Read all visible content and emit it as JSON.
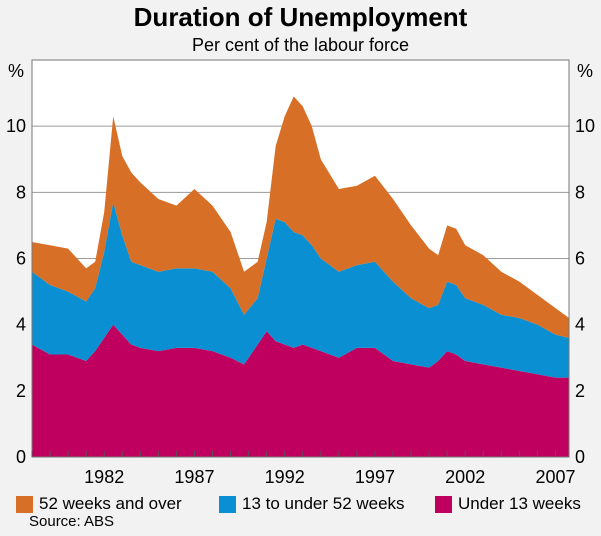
{
  "title": "Duration of Unemployment",
  "subtitle": "Per cent of the labour force",
  "source": "Source: ABS",
  "colors": {
    "long": "#d86f27",
    "medium": "#0a8fd2",
    "short": "#c0005f",
    "background": "#f2f2f2",
    "plot_background": "#ffffff"
  },
  "chart_data": {
    "type": "area",
    "stacked": true,
    "title": "Duration of Unemployment",
    "subtitle": "Per cent of the labour force",
    "ylabel_left": "%",
    "ylabel_right": "%",
    "ylim": [
      0,
      12
    ],
    "yticks": [
      0,
      2,
      4,
      6,
      8,
      10
    ],
    "xlim": [
      1978.0,
      2007.75
    ],
    "xticks": [
      1982,
      1987,
      1992,
      1997,
      2002,
      2007
    ],
    "grid": true,
    "legend_position": "bottom",
    "x": [
      1978.0,
      1979.0,
      1980.0,
      1981.0,
      1981.5,
      1982.0,
      1982.5,
      1983.0,
      1983.5,
      1984.0,
      1985.0,
      1986.0,
      1987.0,
      1988.0,
      1989.0,
      1989.75,
      1990.5,
      1991.0,
      1991.5,
      1992.0,
      1992.5,
      1993.0,
      1993.5,
      1994.0,
      1995.0,
      1996.0,
      1997.0,
      1998.0,
      1999.0,
      2000.0,
      2000.5,
      2001.0,
      2001.5,
      2002.0,
      2003.0,
      2004.0,
      2005.0,
      2006.0,
      2007.0,
      2007.75
    ],
    "series": [
      {
        "name": "Under 13 weeks",
        "color_key": "short",
        "values": [
          3.4,
          3.1,
          3.1,
          2.9,
          3.2,
          3.6,
          4.0,
          3.7,
          3.4,
          3.3,
          3.2,
          3.3,
          3.3,
          3.2,
          3.0,
          2.8,
          3.4,
          3.8,
          3.5,
          3.4,
          3.3,
          3.4,
          3.3,
          3.2,
          3.0,
          3.3,
          3.3,
          2.9,
          2.8,
          2.7,
          2.9,
          3.2,
          3.1,
          2.9,
          2.8,
          2.7,
          2.6,
          2.5,
          2.4,
          2.4
        ]
      },
      {
        "name": "13 to under 52 weeks",
        "color_key": "medium",
        "values": [
          2.2,
          2.1,
          1.9,
          1.8,
          1.9,
          2.6,
          3.7,
          3.0,
          2.5,
          2.5,
          2.4,
          2.4,
          2.4,
          2.4,
          2.1,
          1.5,
          1.4,
          2.2,
          3.7,
          3.7,
          3.5,
          3.3,
          3.1,
          2.8,
          2.6,
          2.5,
          2.6,
          2.4,
          2.0,
          1.8,
          1.7,
          2.1,
          2.1,
          1.9,
          1.8,
          1.6,
          1.6,
          1.5,
          1.3,
          1.2
        ]
      },
      {
        "name": "52 weeks and over",
        "color_key": "long",
        "values": [
          0.9,
          1.2,
          1.3,
          1.0,
          0.8,
          1.2,
          2.6,
          2.4,
          2.7,
          2.5,
          2.2,
          1.9,
          2.4,
          2.0,
          1.7,
          1.3,
          1.1,
          1.1,
          2.2,
          3.2,
          4.1,
          3.9,
          3.6,
          3.0,
          2.5,
          2.4,
          2.6,
          2.5,
          2.2,
          1.8,
          1.5,
          1.7,
          1.7,
          1.6,
          1.5,
          1.3,
          1.1,
          0.9,
          0.8,
          0.6
        ]
      }
    ]
  },
  "legend": [
    {
      "label": "52 weeks and over",
      "color_key": "long"
    },
    {
      "label": "13 to under 52 weeks",
      "color_key": "medium"
    },
    {
      "label": "Under 13 weeks",
      "color_key": "short"
    }
  ]
}
